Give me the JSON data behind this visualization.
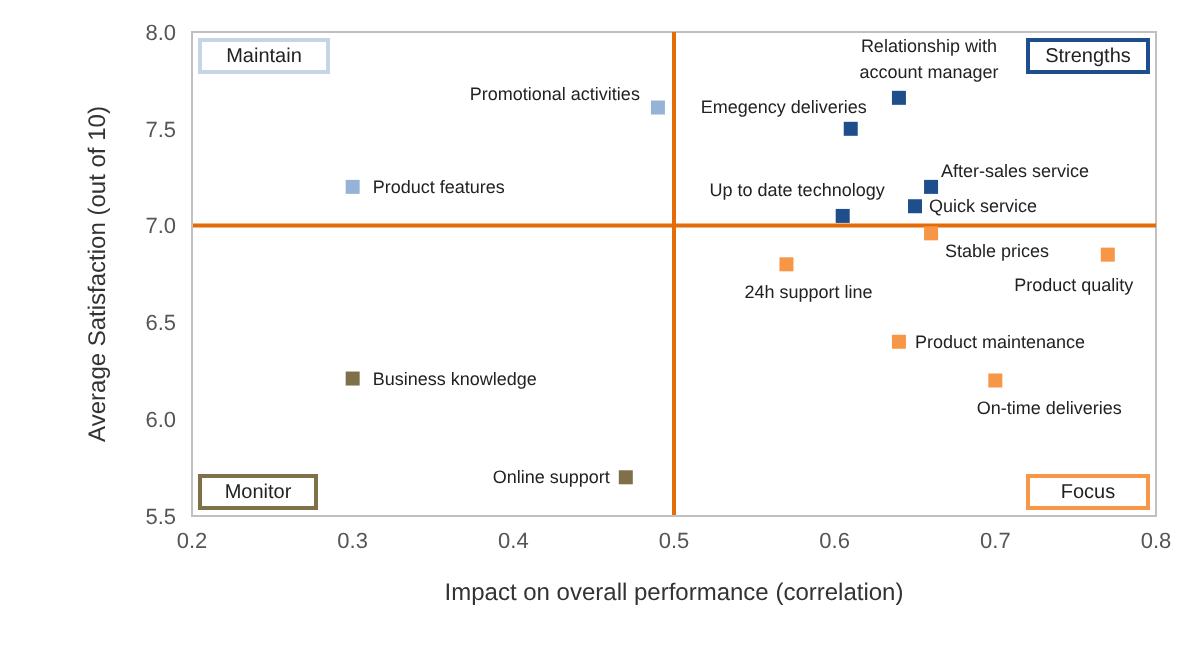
{
  "chart_data": {
    "type": "scatter",
    "xlabel": "Impact on overall performance (correlation)",
    "ylabel": "Average Satisfaction (out of 10)",
    "xlim": [
      0.2,
      0.8
    ],
    "xticks": [
      0.2,
      0.3,
      0.4,
      0.5,
      0.6,
      0.7,
      0.8
    ],
    "ylim": [
      5.5,
      8.0
    ],
    "yticks": [
      {
        "value": 5.5,
        "label": "5.5"
      },
      {
        "value": 6.0,
        "label": "6.0"
      },
      {
        "value": 6.5,
        "label": "6.5"
      },
      {
        "value": 7.0,
        "label": "7.0"
      },
      {
        "value": 7.5,
        "label": "7.5"
      },
      {
        "value": 8.0,
        "label": "8.0"
      }
    ],
    "grid": false,
    "legend": false,
    "marker": "square",
    "annotations": [
      "Maintain",
      "Strengths",
      "Monitor",
      "Focus"
    ],
    "ref_lines": [
      {
        "axis": "x",
        "value": 0.5,
        "color": "#e36c09"
      },
      {
        "axis": "y",
        "value": 7.0,
        "color": "#e36c09"
      }
    ],
    "series": [
      {
        "name": "Promotional activities",
        "color": "#95b3d7",
        "x": [
          0.49
        ],
        "values": [
          7.61
        ]
      },
      {
        "name": "Emegency deliveries",
        "color": "#1f4e8c",
        "x": [
          0.61
        ],
        "values": [
          7.5
        ]
      },
      {
        "name": "Relationship with account manager",
        "color": "#1f4e8c",
        "x": [
          0.64
        ],
        "values": [
          7.66
        ]
      },
      {
        "name": "After-sales service",
        "color": "#1f4e8c",
        "x": [
          0.66
        ],
        "values": [
          7.2
        ]
      },
      {
        "name": "Quick service",
        "color": "#1f4e8c",
        "x": [
          0.65
        ],
        "values": [
          7.1
        ]
      },
      {
        "name": "Up to date technology",
        "color": "#1f4e8c",
        "x": [
          0.605
        ],
        "values": [
          7.05
        ]
      },
      {
        "name": "Product features",
        "color": "#95b3d7",
        "x": [
          0.3
        ],
        "values": [
          7.2
        ]
      },
      {
        "name": "Stable prices",
        "color": "#f79646",
        "x": [
          0.66
        ],
        "values": [
          6.96
        ]
      },
      {
        "name": "24h support line",
        "color": "#f79646",
        "x": [
          0.57
        ],
        "values": [
          6.8
        ]
      },
      {
        "name": "Product quality",
        "color": "#f79646",
        "x": [
          0.77
        ],
        "values": [
          6.85
        ]
      },
      {
        "name": "Product maintenance",
        "color": "#f79646",
        "x": [
          0.64
        ],
        "values": [
          6.4
        ]
      },
      {
        "name": "On-time deliveries",
        "color": "#f79646",
        "x": [
          0.7
        ],
        "values": [
          6.2
        ]
      },
      {
        "name": "Business knowledge",
        "color": "#7f7049",
        "x": [
          0.3
        ],
        "values": [
          6.21
        ]
      },
      {
        "name": "Online support",
        "color": "#7f7049",
        "x": [
          0.47
        ],
        "values": [
          5.7
        ]
      }
    ]
  }
}
